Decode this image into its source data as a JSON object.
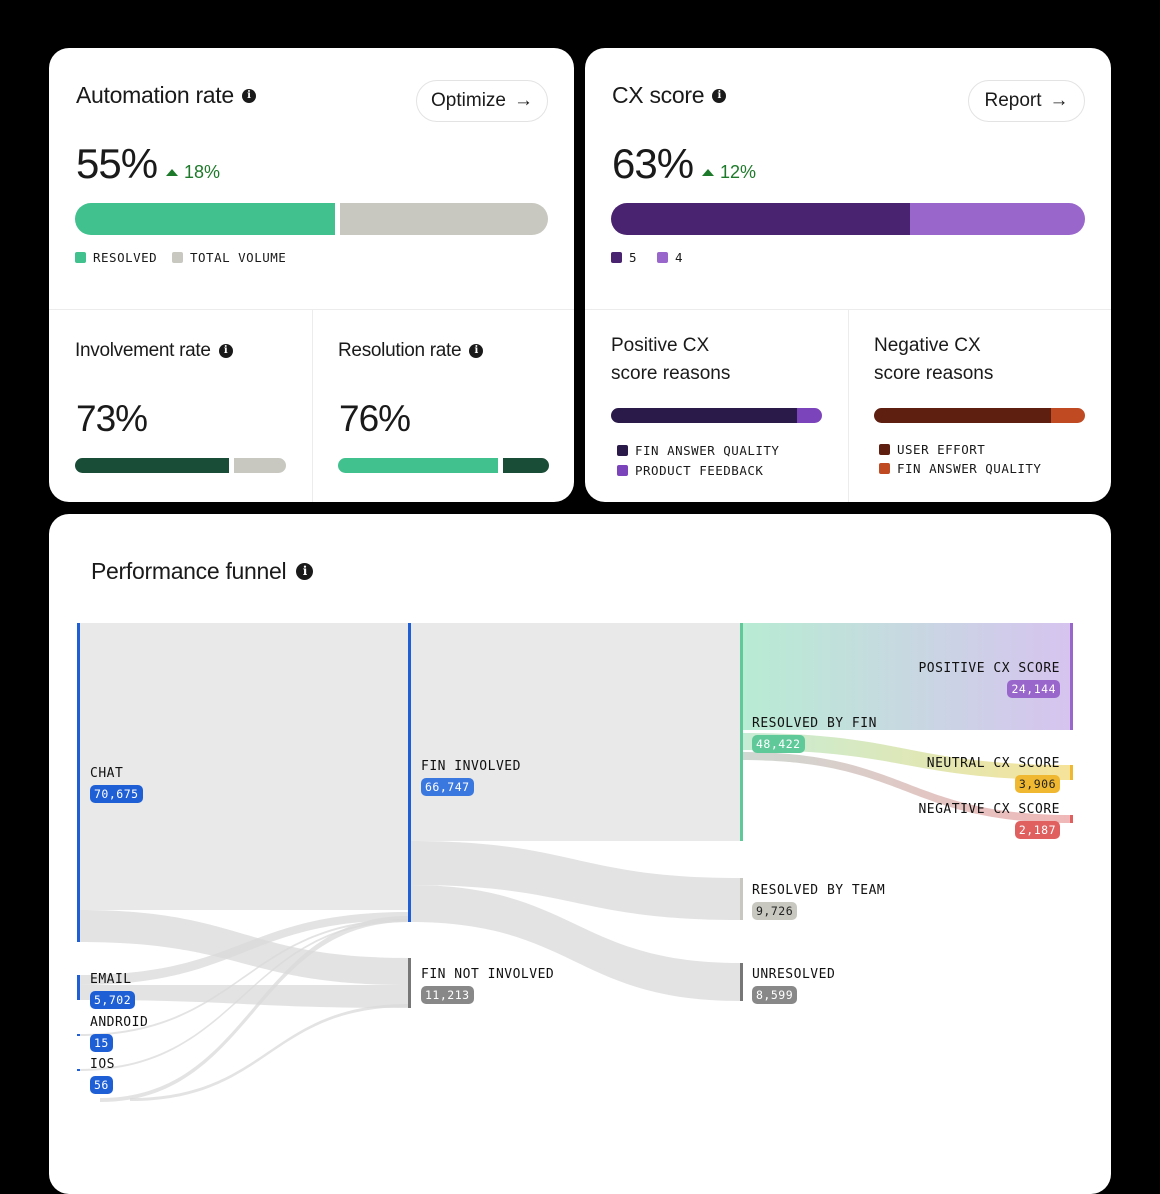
{
  "automation": {
    "title": "Automation rate",
    "button": "Optimize",
    "value": "55%",
    "delta": "18%",
    "resolved_pct": 55,
    "legend": [
      "RESOLVED",
      "TOTAL VOLUME"
    ],
    "colors": [
      "#40c18e",
      "#c8c8c0"
    ]
  },
  "involvement": {
    "title": "Involvement rate",
    "value": "73%",
    "pct": 73,
    "colors": [
      "#1a4d38",
      "#c8c8c0"
    ]
  },
  "resolution": {
    "title": "Resolution rate",
    "value": "76%",
    "pct": 76,
    "colors": [
      "#40c18e",
      "#1a4d38"
    ]
  },
  "cx": {
    "title": "CX score",
    "button": "Report",
    "value": "63%",
    "delta": "12%",
    "pct": 63,
    "legend": [
      "5",
      "4"
    ],
    "colors": [
      "#4a2370",
      "#9966cc"
    ]
  },
  "positive": {
    "title_line1": "Positive CX",
    "title_line2": "score reasons",
    "legend": [
      "FIN ANSWER QUALITY",
      "PRODUCT FEEDBACK"
    ],
    "pct": 88,
    "colors": [
      "#2a1a4a",
      "#7c44bb"
    ]
  },
  "negative": {
    "title_line1": "Negative CX",
    "title_line2": "score reasons",
    "legend": [
      "USER EFFORT",
      "FIN ANSWER QUALITY"
    ],
    "pct": 84,
    "colors": [
      "#5e1e10",
      "#c04a22"
    ]
  },
  "funnel": {
    "title": "Performance funnel",
    "nodes": {
      "chat": {
        "label": "CHAT",
        "value": "70,675"
      },
      "email": {
        "label": "EMAIL",
        "value": "5,702"
      },
      "android": {
        "label": "ANDROID",
        "value": "15"
      },
      "ios": {
        "label": "IOS",
        "value": "56"
      },
      "fin_involved": {
        "label": "FIN INVOLVED",
        "value": "66,747"
      },
      "fin_not_involved": {
        "label": "FIN NOT INVOLVED",
        "value": "11,213"
      },
      "resolved_fin": {
        "label": "RESOLVED BY FIN",
        "value": "48,422"
      },
      "resolved_team": {
        "label": "RESOLVED BY TEAM",
        "value": "9,726"
      },
      "unresolved": {
        "label": "UNRESOLVED",
        "value": "8,599"
      },
      "positive": {
        "label": "POSITIVE CX SCORE",
        "value": "24,144"
      },
      "neutral": {
        "label": "NEUTRAL CX SCORE",
        "value": "3,906"
      },
      "negative": {
        "label": "NEGATIVE CX SCORE",
        "value": "2,187"
      }
    }
  }
}
